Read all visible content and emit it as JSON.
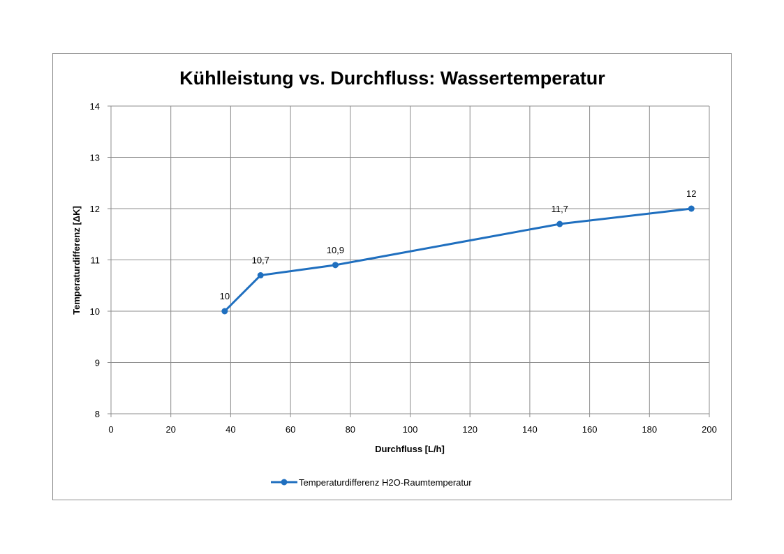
{
  "chart_data": {
    "type": "line",
    "title": "Kühlleistung vs. Durchfluss: Wassertemperatur",
    "xlabel": "Durchfluss [L/h]",
    "ylabel": "Temperaturdifferenz [ΔK]",
    "xlim": [
      0,
      200
    ],
    "ylim": [
      8,
      14
    ],
    "x_ticks": [
      "0",
      "20",
      "40",
      "60",
      "80",
      "100",
      "120",
      "140",
      "160",
      "180",
      "200"
    ],
    "y_ticks": [
      "8",
      "9",
      "10",
      "11",
      "12",
      "13",
      "14"
    ],
    "grid": true,
    "legend_position": "bottom",
    "series": [
      {
        "name": "Temperaturdifferenz H2O-Raumtemperatur",
        "color": "#1f6fbf",
        "x": [
          38,
          50,
          75,
          150,
          194
        ],
        "y": [
          10,
          10.7,
          10.9,
          11.7,
          12
        ],
        "labels": [
          "10",
          "10,7",
          "10,9",
          "11,7",
          "12"
        ]
      }
    ]
  }
}
